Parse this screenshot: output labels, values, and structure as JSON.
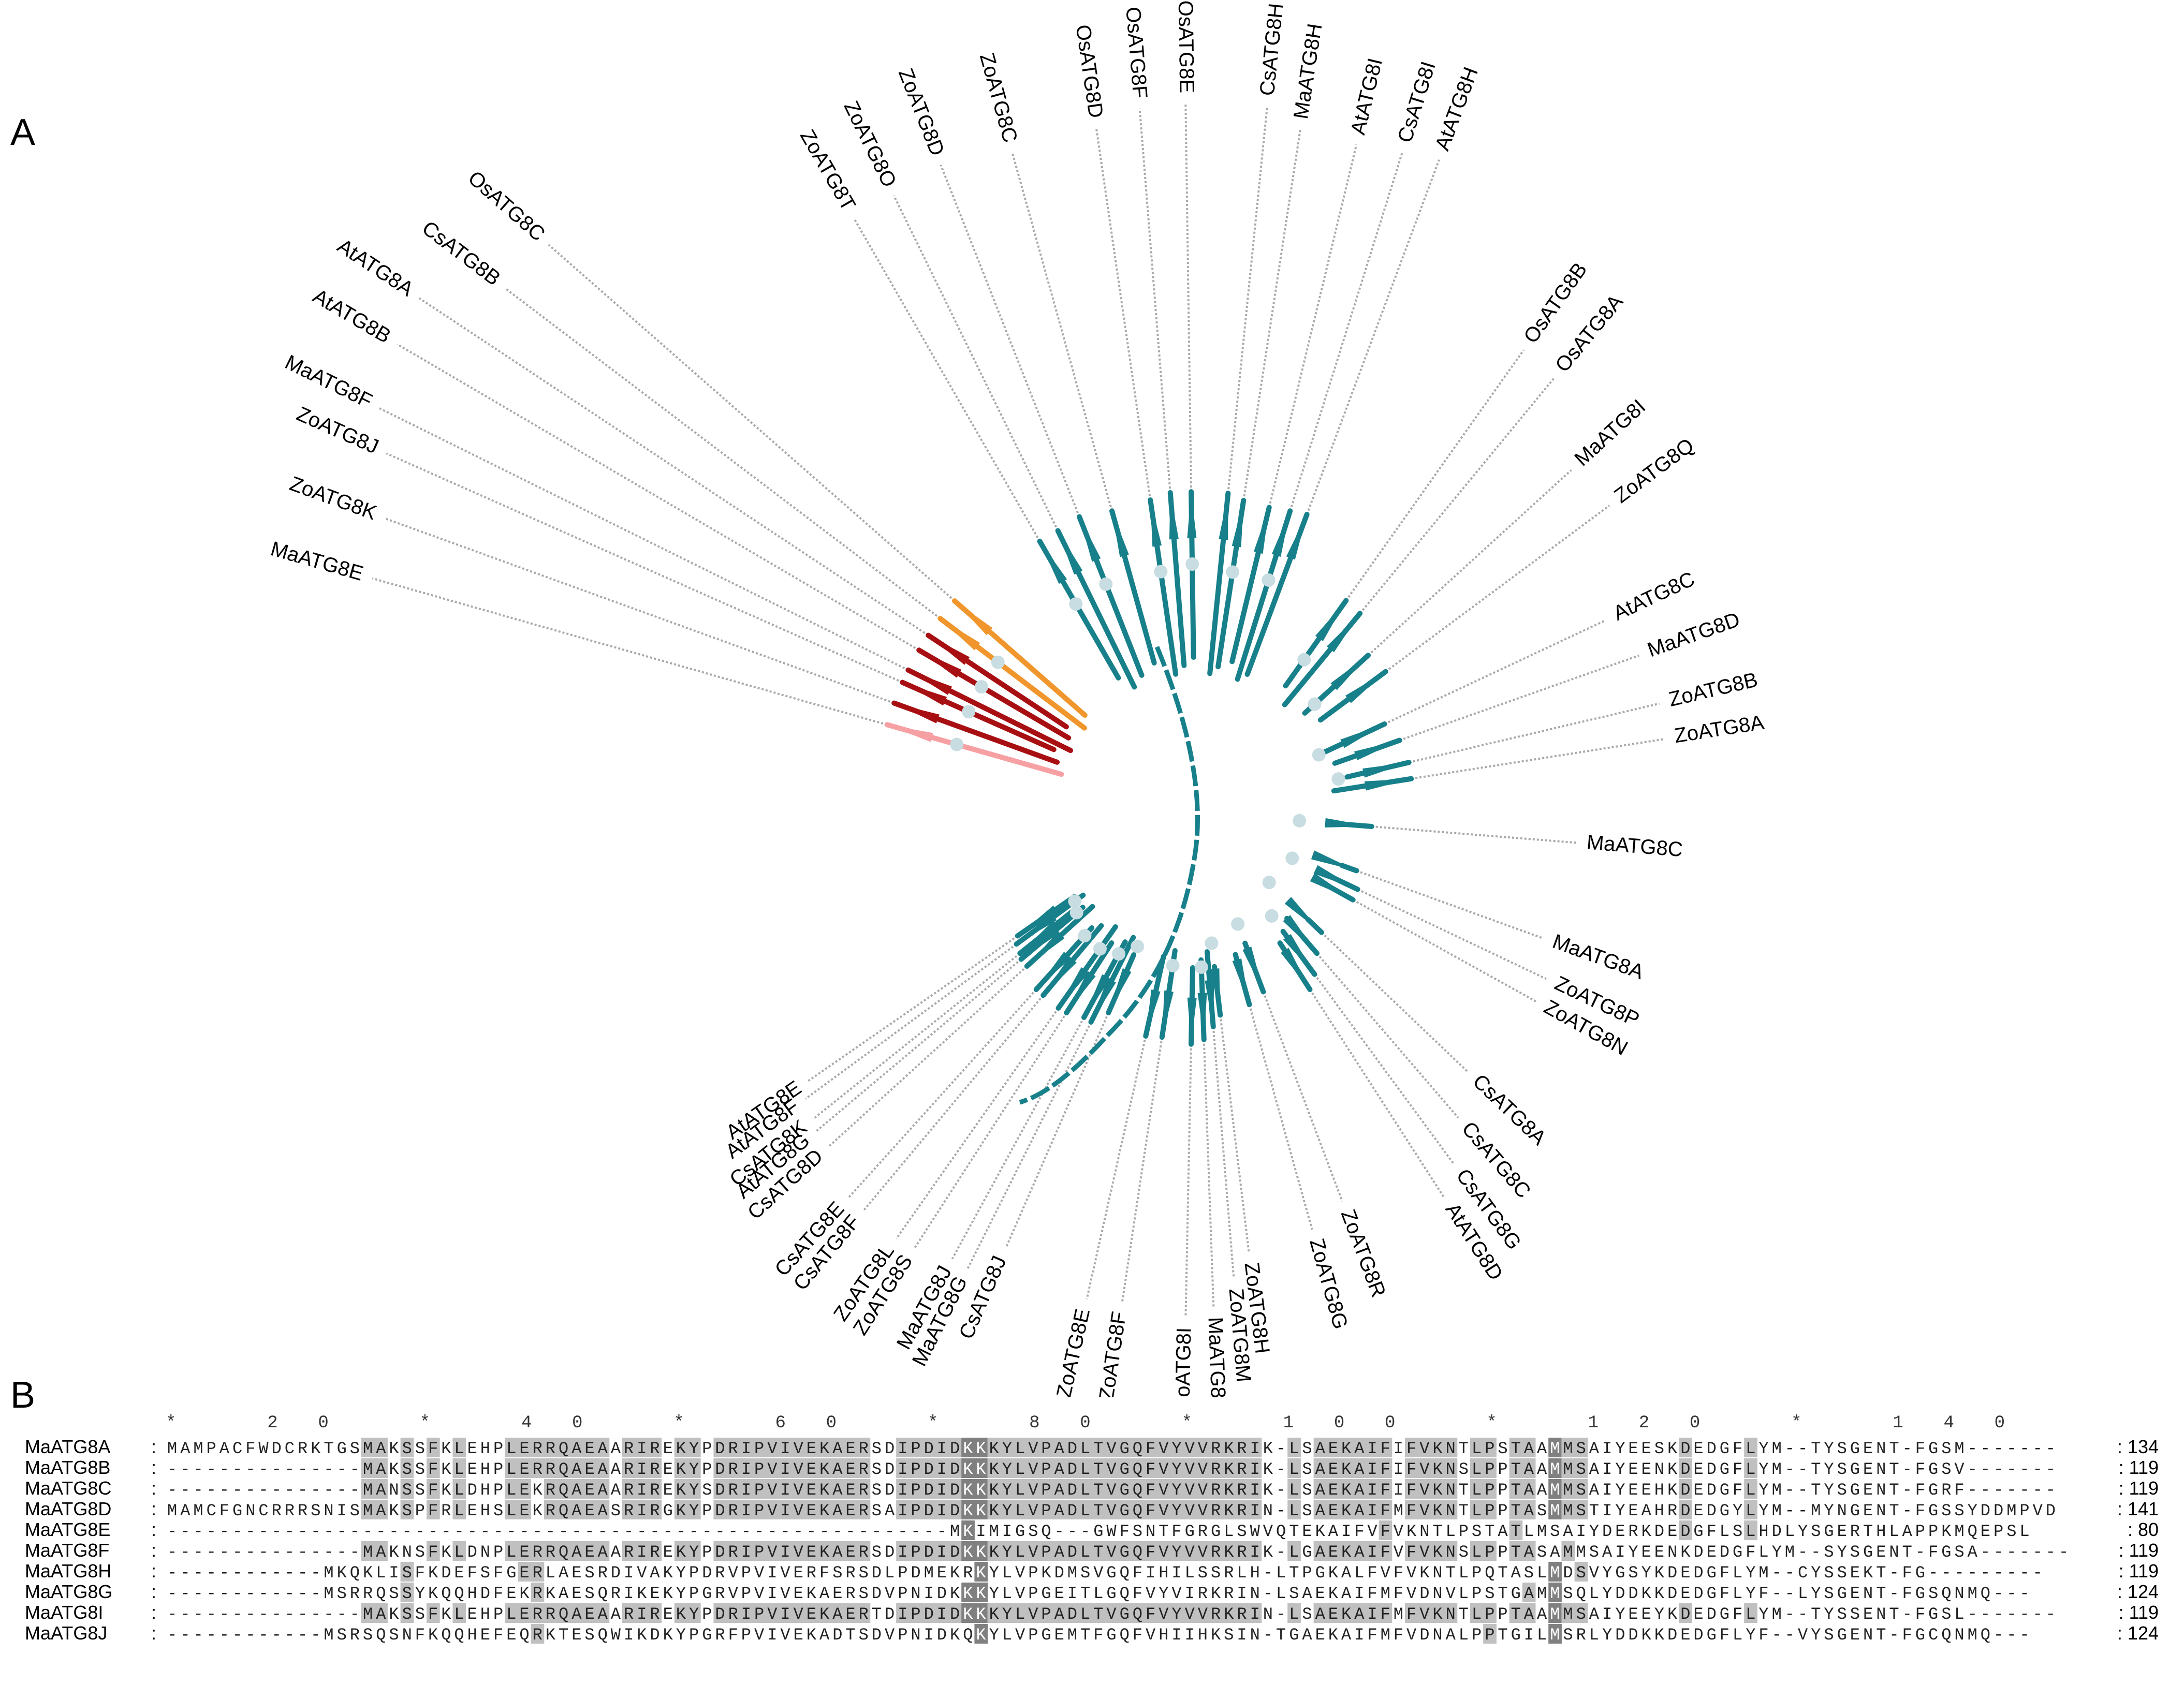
{
  "panel_a": {
    "label": "A"
  },
  "panel_b": {
    "label": "B"
  },
  "colors": {
    "branch": "#17808a",
    "node": "#c7dde2",
    "leader": "#a9a9a9",
    "dark_red": "#a80f12",
    "pink": "#f7a0a4",
    "orange": "#f0962c",
    "black_shade": "#000000",
    "dark_shade": "#808080",
    "light_shade": "#c0c0c0"
  },
  "tree": {
    "leaves": [
      {
        "label": "MaATG8E",
        "group": "pink"
      },
      {
        "label": "ZoATG8K",
        "group": "dark_red"
      },
      {
        "label": "ZoATG8J",
        "group": "dark_red"
      },
      {
        "label": "MaATG8F",
        "group": "dark_red"
      },
      {
        "label": "AtATG8B",
        "group": "dark_red"
      },
      {
        "label": "AtATG8A",
        "group": "dark_red"
      },
      {
        "label": "CsATG8B",
        "group": "orange"
      },
      {
        "label": "OsATG8C",
        "group": "orange"
      },
      {
        "label": "ZoATG8T",
        "group": "teal"
      },
      {
        "label": "ZoATG8O",
        "group": "teal"
      },
      {
        "label": "ZoATG8D",
        "group": "teal"
      },
      {
        "label": "ZoATG8C",
        "group": "teal"
      },
      {
        "label": "OsATG8D",
        "group": "teal"
      },
      {
        "label": "OsATG8F",
        "group": "teal"
      },
      {
        "label": "OsATG8E",
        "group": "teal"
      },
      {
        "label": "CsATG8H",
        "group": "teal"
      },
      {
        "label": "MaATG8H",
        "group": "teal"
      },
      {
        "label": "AtATG8I",
        "group": "teal"
      },
      {
        "label": "CsATG8I",
        "group": "teal"
      },
      {
        "label": "AtATG8H",
        "group": "teal"
      },
      {
        "label": "OsATG8B",
        "group": "teal"
      },
      {
        "label": "OsATG8A",
        "group": "teal"
      },
      {
        "label": "MaATG8I",
        "group": "teal"
      },
      {
        "label": "ZoATG8Q",
        "group": "teal"
      },
      {
        "label": "AtATG8C",
        "group": "teal"
      },
      {
        "label": "MaATG8D",
        "group": "teal"
      },
      {
        "label": "ZoATG8B",
        "group": "teal"
      },
      {
        "label": "ZoATG8A",
        "group": "teal"
      },
      {
        "label": "MaATG8C",
        "group": "teal"
      },
      {
        "label": "MaATG8A",
        "group": "teal"
      },
      {
        "label": "ZoATG8P",
        "group": "teal"
      },
      {
        "label": "ZoATG8N",
        "group": "teal"
      },
      {
        "label": "CsATG8A",
        "group": "teal"
      },
      {
        "label": "CsATG8C",
        "group": "teal"
      },
      {
        "label": "CsATG8G",
        "group": "teal"
      },
      {
        "label": "AtATG8D",
        "group": "teal"
      },
      {
        "label": "ZoATG8R",
        "group": "teal"
      },
      {
        "label": "ZoATG8G",
        "group": "teal"
      },
      {
        "label": "ZoATG8H",
        "group": "teal"
      },
      {
        "label": "ZoATG8M",
        "group": "teal"
      },
      {
        "label": "MaATG8B",
        "group": "teal"
      },
      {
        "label": "ZoATG8I",
        "group": "teal"
      },
      {
        "label": "ZoATG8F",
        "group": "teal"
      },
      {
        "label": "ZoATG8E",
        "group": "teal"
      },
      {
        "label": "CsATG8J",
        "group": "teal"
      },
      {
        "label": "MaATG8G",
        "group": "teal"
      },
      {
        "label": "MaATG8J",
        "group": "teal"
      },
      {
        "label": "ZoATG8S",
        "group": "teal"
      },
      {
        "label": "ZoATG8L",
        "group": "teal"
      },
      {
        "label": "CsATG8F",
        "group": "teal"
      },
      {
        "label": "CsATG8E",
        "group": "teal"
      },
      {
        "label": "CsATG8D",
        "group": "teal"
      },
      {
        "label": "AtATG8G",
        "group": "teal"
      },
      {
        "label": "CsATG8K",
        "group": "teal"
      },
      {
        "label": "AtATG8F",
        "group": "teal"
      },
      {
        "label": "AtATG8E",
        "group": "teal"
      }
    ]
  },
  "alignment": {
    "ruler": "           *       20         *        40         *        60         *        80         *       100         *       120         *       140",
    "sequences": [
      {
        "name": "MaATG8A",
        "sep": ":",
        "seq": "MAMPACFWDCRKTGSMAKSSFKLEHPLERRQAEAARIREKYPDRIPVIVEKAERSDIPDIDKKKYLVPADLTVGQFVYVVRKRIK-LSAEKAIFIFVKNTLPSTAAMMSAIYEESKDEDGFLYM--TYSGENT-FGSM-------",
        "end": "134"
      },
      {
        "name": "MaATG8B",
        "sep": ":",
        "seq": "---------------MAKSSFKLEHPLERRQAEAARIREKYPDRIPVIVEKAERSDIPDIDKKKYLVPADLTVGQFVYVVRKRIK-LSAEKAIFIFVKNSLPPTAAMMSAIYEENKDEDGFLYM--TYSGENT-FGSV-------",
        "end": "119"
      },
      {
        "name": "MaATG8C",
        "sep": ":",
        "seq": "---------------MANSSFKLDHPLEKRQAEAARIREKYSDRIPVIVEKAERSDIPDIDKKKYLVPADLTVGQFVYVVRKRIK-LSAEKAIFIFVKNTLPPTAAMMSAIYEEHKDEDGFLYM--TYSGENT-FGRF-------",
        "end": "119"
      },
      {
        "name": "MaATG8D",
        "sep": ":",
        "seq": "MAMCFGNCRRRSNISMAKSPFRLEHSLEKRQAEASRIRGKYPDRIPVIVEKAERSAIPDIDKKKYLVPADLTVGQFVYVVRKRIN-LSAEKAIFMFVKNTLPPTASMMSTIYEAHRDEDGYLYM--MYNGENT-FGSSYDDMPVD",
        "end": "141"
      },
      {
        "name": "MaATG8E",
        "sep": ":",
        "seq": "------------------------------------------------------------MKIMIGSQ---GWFSNTFGRGLSWVQTEKAIFVFVKNTLPSTATLMSAIYDERKDEDGFLSLHDLYSGERTHLAPPKMQEPSL",
        "end": "80"
      },
      {
        "name": "MaATG8F",
        "sep": ":",
        "seq": "---------------MAKNSFKLDNPLERRQAEAARIREKYPDRIPVIVEKAERSDIPDIDKKKYLVPADLTVGQFVYVVRKRIK-LGAEKAIFVFVKNSLPPTASAMMSAIYEENKDEDGFLYM--SYSGENT-FGSA-------",
        "end": "119"
      },
      {
        "name": "MaATG8H",
        "sep": ":",
        "seq": "------------MKQKLISFKDEFSFGERLAESRDIVAKYPDRVPVIVERFSRSDLPDMEKRKYLVPKDMSVGQFIHILSSRLH-LTPGKALFVFVKNTLPQTASLMDSVYGSYKDEDGFLYM--CYSSEKT-FG---------",
        "end": "119"
      },
      {
        "name": "MaATG8G",
        "sep": ":",
        "seq": "------------MSRRQSSYKQQHDFEKRKAESQRIKEKYPGRVPVIVEKAERSDVPNIDKKKYLVPGEITLGQFVYVIRKRIN-LSAEKAIFMFVDNVLPSTGAMMSQLYDDKKDEDGFLYF--LYSGENT-FGSQNMQ---",
        "end": "124"
      },
      {
        "name": "MaATG8I",
        "sep": ":",
        "seq": "---------------MAKSSFKLEHPLERRQAEAARIREKYPDRIPVIVEKAERTDIPDIDKKKYLVPADLTVGQFVYVVRKRIN-LSAEKAIFMFVKNTLPPTAAMMSAIYEEYKDEDGFLYM--TYSSENT-FGSL-------",
        "end": "119"
      },
      {
        "name": "MaATG8J",
        "sep": ":",
        "seq": "------------MSRSQSNFKQQHEFEQRKTESQWIKDKYPGRFPVIVEKADTSDVPNIDKQKYLVPGEMTFGQFVHIIHKSIN-TGAEKAIFMFVDNALPPTGILMSRLYDDKKDEDGFLYF--VYSGENT-FGCQNMQ---",
        "end": "124"
      }
    ]
  }
}
